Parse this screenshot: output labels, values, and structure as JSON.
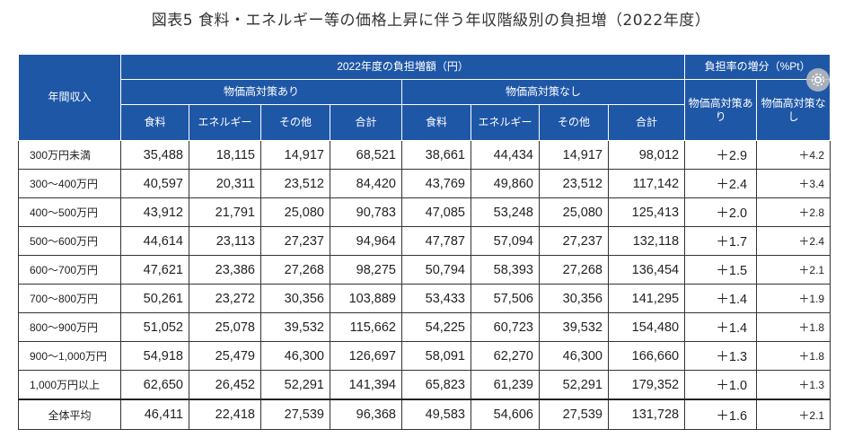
{
  "title": "図表5 食料・エネルギー等の価格上昇に伴う年収階級別の負担増（2022年度）",
  "header": {
    "income_label": "年間収入",
    "increase_group": "2022年度の負担増額（円）",
    "rate_group": "負担率の増分（%Pt）",
    "with_measures": "物価高対策あり",
    "without_measures": "物価高対策なし",
    "cols": [
      "食料",
      "エネルギー",
      "その他",
      "合計",
      "食料",
      "エネルギー",
      "その他",
      "合計"
    ],
    "rate_with": "物価高対策あり",
    "rate_without": "物価高対策なし"
  },
  "rows": [
    {
      "label": "300万円未満",
      "cells": [
        "35,488",
        "18,115",
        "14,917",
        "68,521",
        "38,661",
        "44,434",
        "14,917",
        "98,012"
      ],
      "rate_with": "＋2.9",
      "rate_without": "＋4.2"
    },
    {
      "label": "300〜400万円",
      "cells": [
        "40,597",
        "20,311",
        "23,512",
        "84,420",
        "43,769",
        "49,860",
        "23,512",
        "117,142"
      ],
      "rate_with": "＋2.4",
      "rate_without": "＋3.4"
    },
    {
      "label": "400〜500万円",
      "cells": [
        "43,912",
        "21,791",
        "25,080",
        "90,783",
        "47,085",
        "53,248",
        "25,080",
        "125,413"
      ],
      "rate_with": "＋2.0",
      "rate_without": "＋2.8"
    },
    {
      "label": "500〜600万円",
      "cells": [
        "44,614",
        "23,113",
        "27,237",
        "94,964",
        "47,787",
        "57,094",
        "27,237",
        "132,118"
      ],
      "rate_with": "＋1.7",
      "rate_without": "＋2.4"
    },
    {
      "label": "600〜700万円",
      "cells": [
        "47,621",
        "23,386",
        "27,268",
        "98,275",
        "50,794",
        "58,393",
        "27,268",
        "136,454"
      ],
      "rate_with": "＋1.5",
      "rate_without": "＋2.1"
    },
    {
      "label": "700〜800万円",
      "cells": [
        "50,261",
        "23,272",
        "30,356",
        "103,889",
        "53,433",
        "57,506",
        "30,356",
        "141,295"
      ],
      "rate_with": "＋1.4",
      "rate_without": "＋1.9"
    },
    {
      "label": "800〜900万円",
      "cells": [
        "51,052",
        "25,078",
        "39,532",
        "115,662",
        "54,225",
        "60,723",
        "39,532",
        "154,480"
      ],
      "rate_with": "＋1.4",
      "rate_without": "＋1.8"
    },
    {
      "label": "900〜1,000万円",
      "cells": [
        "54,918",
        "25,479",
        "46,300",
        "126,697",
        "58,091",
        "62,270",
        "46,300",
        "166,660"
      ],
      "rate_with": "＋1.3",
      "rate_without": "＋1.8"
    },
    {
      "label": "1,000万円以上",
      "cells": [
        "62,650",
        "26,452",
        "52,291",
        "141,394",
        "65,823",
        "61,239",
        "52,291",
        "179,352"
      ],
      "rate_with": "＋1.0",
      "rate_without": "＋1.3"
    }
  ],
  "average": {
    "label": "全体平均",
    "cells": [
      "46,411",
      "22,418",
      "27,539",
      "96,368",
      "49,583",
      "54,606",
      "27,539",
      "131,728"
    ],
    "rate_with": "＋1.6",
    "rate_without": "＋2.1"
  },
  "colors": {
    "header_bg": "#1f57a7",
    "highlight": "#e0261b"
  },
  "icons": {
    "overlay": "share-icon"
  }
}
